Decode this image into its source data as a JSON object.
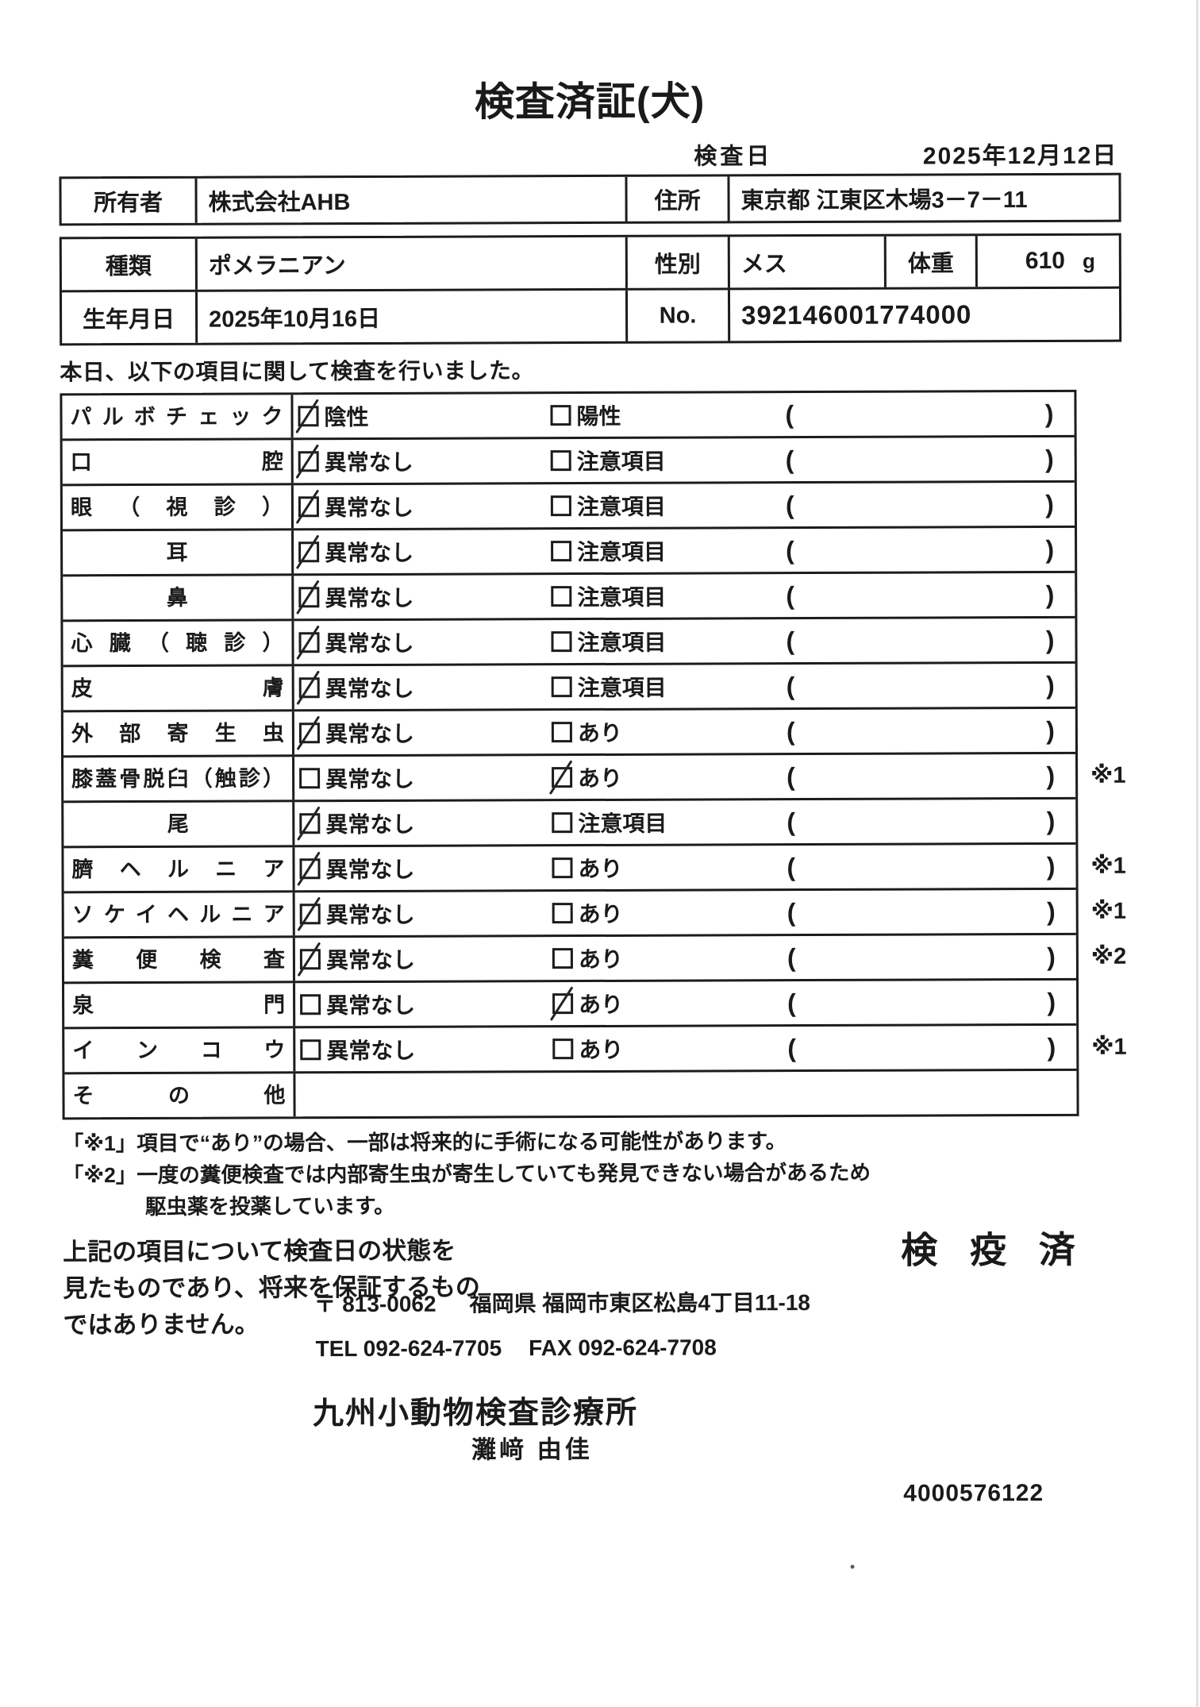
{
  "title": "検査済証(犬)",
  "header": {
    "inspection_date_label": "検査日",
    "inspection_date": "2025年12月12日"
  },
  "owner_table": {
    "owner_label": "所有者",
    "owner_name": "株式会社AHB",
    "address_label": "住所",
    "address": "東京都 江東区木場3－7－11"
  },
  "pet_table": {
    "breed_label": "種類",
    "breed": "ポメラニアン",
    "sex_label": "性別",
    "sex": "メス",
    "weight_label": "体重",
    "weight_value": "610",
    "weight_unit": "g",
    "birth_label": "生年月日",
    "birth_date": "2025年10月16日",
    "no_label": "No.",
    "no_value": "392146001774000"
  },
  "intro_text": "本日、以下の項目に関して検査を行いました。",
  "inspection": {
    "paren_open": "(",
    "paren_close": ")",
    "rows": [
      {
        "label": "パルボチェック",
        "opt1": "陰性",
        "opt2": "陽性",
        "checked": "opt1",
        "note": ""
      },
      {
        "label": "口腔",
        "opt1": "異常なし",
        "opt2": "注意項目",
        "checked": "opt1",
        "note": ""
      },
      {
        "label": "眼（視診）",
        "opt1": "異常なし",
        "opt2": "注意項目",
        "checked": "opt1",
        "note": ""
      },
      {
        "label": "耳",
        "opt1": "異常なし",
        "opt2": "注意項目",
        "checked": "opt1",
        "note": ""
      },
      {
        "label": "鼻",
        "opt1": "異常なし",
        "opt2": "注意項目",
        "checked": "opt1",
        "note": ""
      },
      {
        "label": "心臓（聴診）",
        "opt1": "異常なし",
        "opt2": "注意項目",
        "checked": "opt1",
        "note": ""
      },
      {
        "label": "皮膚",
        "opt1": "異常なし",
        "opt2": "注意項目",
        "checked": "opt1",
        "note": ""
      },
      {
        "label": "外部寄生虫",
        "opt1": "異常なし",
        "opt2": "あり",
        "checked": "opt1",
        "note": ""
      },
      {
        "label": "膝蓋骨脱臼（触診）",
        "opt1": "異常なし",
        "opt2": "あり",
        "checked": "opt2",
        "note": "※1"
      },
      {
        "label": "尾",
        "opt1": "異常なし",
        "opt2": "注意項目",
        "checked": "opt1",
        "note": ""
      },
      {
        "label": "臍ヘルニア",
        "opt1": "異常なし",
        "opt2": "あり",
        "checked": "opt1",
        "note": "※1"
      },
      {
        "label": "ソケイヘルニア",
        "opt1": "異常なし",
        "opt2": "あり",
        "checked": "opt1",
        "note": "※1"
      },
      {
        "label": "糞便検査",
        "opt1": "異常なし",
        "opt2": "あり",
        "checked": "opt1",
        "note": "※2"
      },
      {
        "label": "泉門",
        "opt1": "異常なし",
        "opt2": "あり",
        "checked": "opt2",
        "note": ""
      },
      {
        "label": "インコウ",
        "opt1": "異常なし",
        "opt2": "あり",
        "checked": null,
        "note": "※1"
      },
      {
        "label": "その他",
        "opt1": null,
        "opt2": null,
        "checked": null,
        "note": ""
      }
    ]
  },
  "footnotes": [
    "「※1」項目で“あり”の場合、一部は将来的に手術になる可能性があります。",
    "「※2」一度の糞便検査では内部寄生虫が寄生していても発見できない場合があるため",
    "駆虫薬を投薬しています。"
  ],
  "disclaimer_lines": [
    "上記の項目について検査日の状態を",
    "見たものであり、将来を保証するもの",
    "ではありません。"
  ],
  "stamp": "検 疫 済",
  "clinic": {
    "postal": "〒 813-0062",
    "address": "福岡県 福岡市東区松島4丁目11-18",
    "tel": "TEL 092-624-7705",
    "fax": "FAX 092-624-7708",
    "name": "九州小動物検査診療所",
    "veterinarian": "灘﨑 由佳"
  },
  "document_code": "4000576122"
}
